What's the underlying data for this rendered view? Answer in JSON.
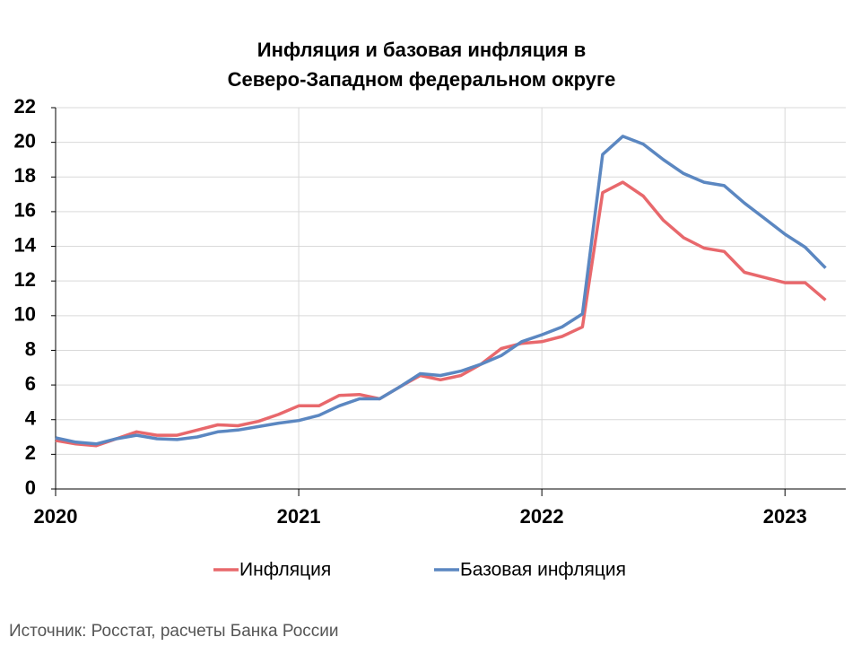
{
  "chart_data": {
    "type": "line",
    "title": [
      "Инфляция и базовая инфляция в",
      "Северо-Западном федеральном округе"
    ],
    "source": "Источник: Росстат, расчеты Банка России",
    "x": [
      2020,
      2020.083,
      2020.167,
      2020.25,
      2020.333,
      2020.417,
      2020.5,
      2020.583,
      2020.667,
      2020.75,
      2020.833,
      2020.917,
      2021,
      2021.083,
      2021.167,
      2021.25,
      2021.333,
      2021.417,
      2021.5,
      2021.583,
      2021.667,
      2021.75,
      2021.833,
      2021.917,
      2022,
      2022.083,
      2022.167,
      2022.25,
      2022.333,
      2022.417,
      2022.5,
      2022.583,
      2022.667,
      2022.75,
      2022.833,
      2022.917,
      2023,
      2023.083,
      2023.167
    ],
    "series": [
      {
        "name": "Инфляция",
        "color": "#e8686c",
        "values": [
          2.8,
          2.6,
          2.5,
          2.9,
          3.3,
          3.1,
          3.1,
          3.4,
          3.7,
          3.65,
          3.9,
          4.3,
          4.8,
          4.8,
          5.4,
          5.45,
          5.2,
          5.9,
          6.55,
          6.3,
          6.55,
          7.2,
          8.1,
          8.4,
          8.5,
          8.8,
          9.35,
          17.1,
          17.7,
          16.9,
          15.5,
          14.5,
          13.9,
          13.7,
          12.5,
          12.2,
          11.9,
          11.9,
          10.9
        ]
      },
      {
        "name": "Базовая инфляция",
        "color": "#5b87c1",
        "values": [
          2.95,
          2.7,
          2.6,
          2.9,
          3.1,
          2.9,
          2.85,
          3.0,
          3.3,
          3.4,
          3.6,
          3.8,
          3.95,
          4.25,
          4.8,
          5.2,
          5.2,
          5.9,
          6.65,
          6.55,
          6.8,
          7.2,
          7.7,
          8.5,
          8.9,
          9.35,
          10.1,
          19.3,
          20.35,
          19.9,
          19.0,
          18.2,
          17.7,
          17.5,
          16.5,
          15.6,
          14.7,
          13.95,
          12.75
        ]
      }
    ],
    "xlim": [
      2020,
      2023.25
    ],
    "xticks": [
      2020,
      2021,
      2022,
      2023
    ],
    "ylim": [
      0,
      22
    ],
    "yticks": [
      0,
      2,
      4,
      6,
      8,
      10,
      12,
      14,
      16,
      18,
      20,
      22
    ],
    "grid": true,
    "legend": "bottom"
  }
}
